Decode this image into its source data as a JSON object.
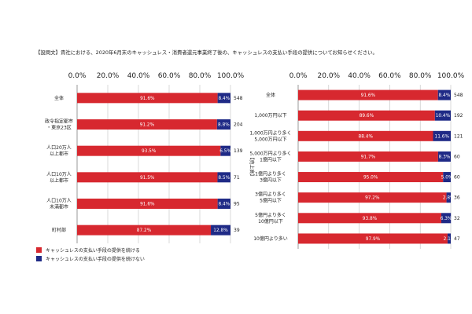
{
  "question": "【設問文】貴社における、2020年6月末のキャッシュレス・消費者還元事業終了後の、キャッシュレスの支払い手段の提供についてお知らせください。",
  "colors": {
    "continue": "#d7282f",
    "discontinue": "#1f2a86"
  },
  "legend": {
    "continue": "キャッシュレスの支払い手段の提供を続ける",
    "discontinue": "キャッシュレスの支払い手段の提供を続けない"
  },
  "chart_data": [
    {
      "type": "bar",
      "orientation": "horizontal",
      "stacked": true,
      "xlim": [
        0,
        100
      ],
      "ticks": [
        "0.0%",
        "20.0%",
        "40.0%",
        "60.0%",
        "80.0%",
        "100.0%"
      ],
      "categories": [
        "全体",
        "政令指定都市・東京23区",
        "人口20万人以上都市",
        "人口10万人以上都市",
        "人口10万人未満都市",
        "町村部"
      ],
      "category_lines": [
        [
          "全体"
        ],
        [
          "政令指定都市",
          "・東京23区"
        ],
        [
          "人口20万人",
          "以上都市"
        ],
        [
          "人口10万人",
          "以上都市"
        ],
        [
          "人口10万人",
          "未満都市"
        ],
        [
          "町村部"
        ]
      ],
      "series": [
        {
          "name": "キャッシュレスの支払い手段の提供を続ける",
          "values": [
            91.6,
            91.2,
            93.5,
            91.5,
            91.6,
            87.2
          ],
          "labels": [
            "91.6%",
            "91.2%",
            "93.5%",
            "91.5%",
            "91.6%",
            "87.2%"
          ]
        },
        {
          "name": "キャッシュレスの支払い手段の提供を続けない",
          "values": [
            8.4,
            8.8,
            6.5,
            8.5,
            8.4,
            12.8
          ],
          "labels": [
            "8.4%",
            "8.8%",
            "6.5%",
            "8.5%",
            "8.4%",
            "12.8%"
          ]
        }
      ],
      "n": [
        "548",
        "204",
        "139",
        "71",
        "95",
        "39"
      ]
    },
    {
      "type": "bar",
      "orientation": "horizontal",
      "stacked": true,
      "xlim": [
        0,
        100
      ],
      "ticks": [
        "0.0%",
        "20.0%",
        "40.0%",
        "60.0%",
        "80.0%",
        "100.0%"
      ],
      "group_label": "【売上高】",
      "categories": [
        "全体",
        "1,000万円以下",
        "1,000万円より多く5,000万円以下",
        "5,000万円より多く1億円以下",
        "1億円より多く3億円以下",
        "3億円より多く5億円以下",
        "5億円より多く10億円以下",
        "10億円より多い"
      ],
      "category_lines": [
        [
          "全体"
        ],
        [
          "1,000万円以下"
        ],
        [
          "1,000万円より多く",
          "5,000万円以下"
        ],
        [
          "5,000万円より多く",
          "1億円以下"
        ],
        [
          "1億円より多く",
          "3億円以下"
        ],
        [
          "3億円より多く",
          "5億円以下"
        ],
        [
          "5億円より多く",
          "10億円以下"
        ],
        [
          "10億円より多い"
        ]
      ],
      "series": [
        {
          "name": "キャッシュレスの支払い手段の提供を続ける",
          "values": [
            91.6,
            89.6,
            88.4,
            91.7,
            95.0,
            97.2,
            93.8,
            97.9
          ],
          "labels": [
            "91.6%",
            "89.6%",
            "88.4%",
            "91.7%",
            "95.0%",
            "97.2%",
            "93.8%",
            "97.9%"
          ]
        },
        {
          "name": "キャッシュレスの支払い手段の提供を続けない",
          "values": [
            8.4,
            10.4,
            11.6,
            8.3,
            5.0,
            2.8,
            6.3,
            2.1
          ],
          "labels": [
            "8.4%",
            "10.4%",
            "11.6%",
            "8.3%",
            "5.0%",
            "2.8%",
            "6.3%",
            "2.1%"
          ]
        }
      ],
      "n": [
        "548",
        "192",
        "121",
        "60",
        "60",
        "36",
        "32",
        "47"
      ]
    }
  ]
}
